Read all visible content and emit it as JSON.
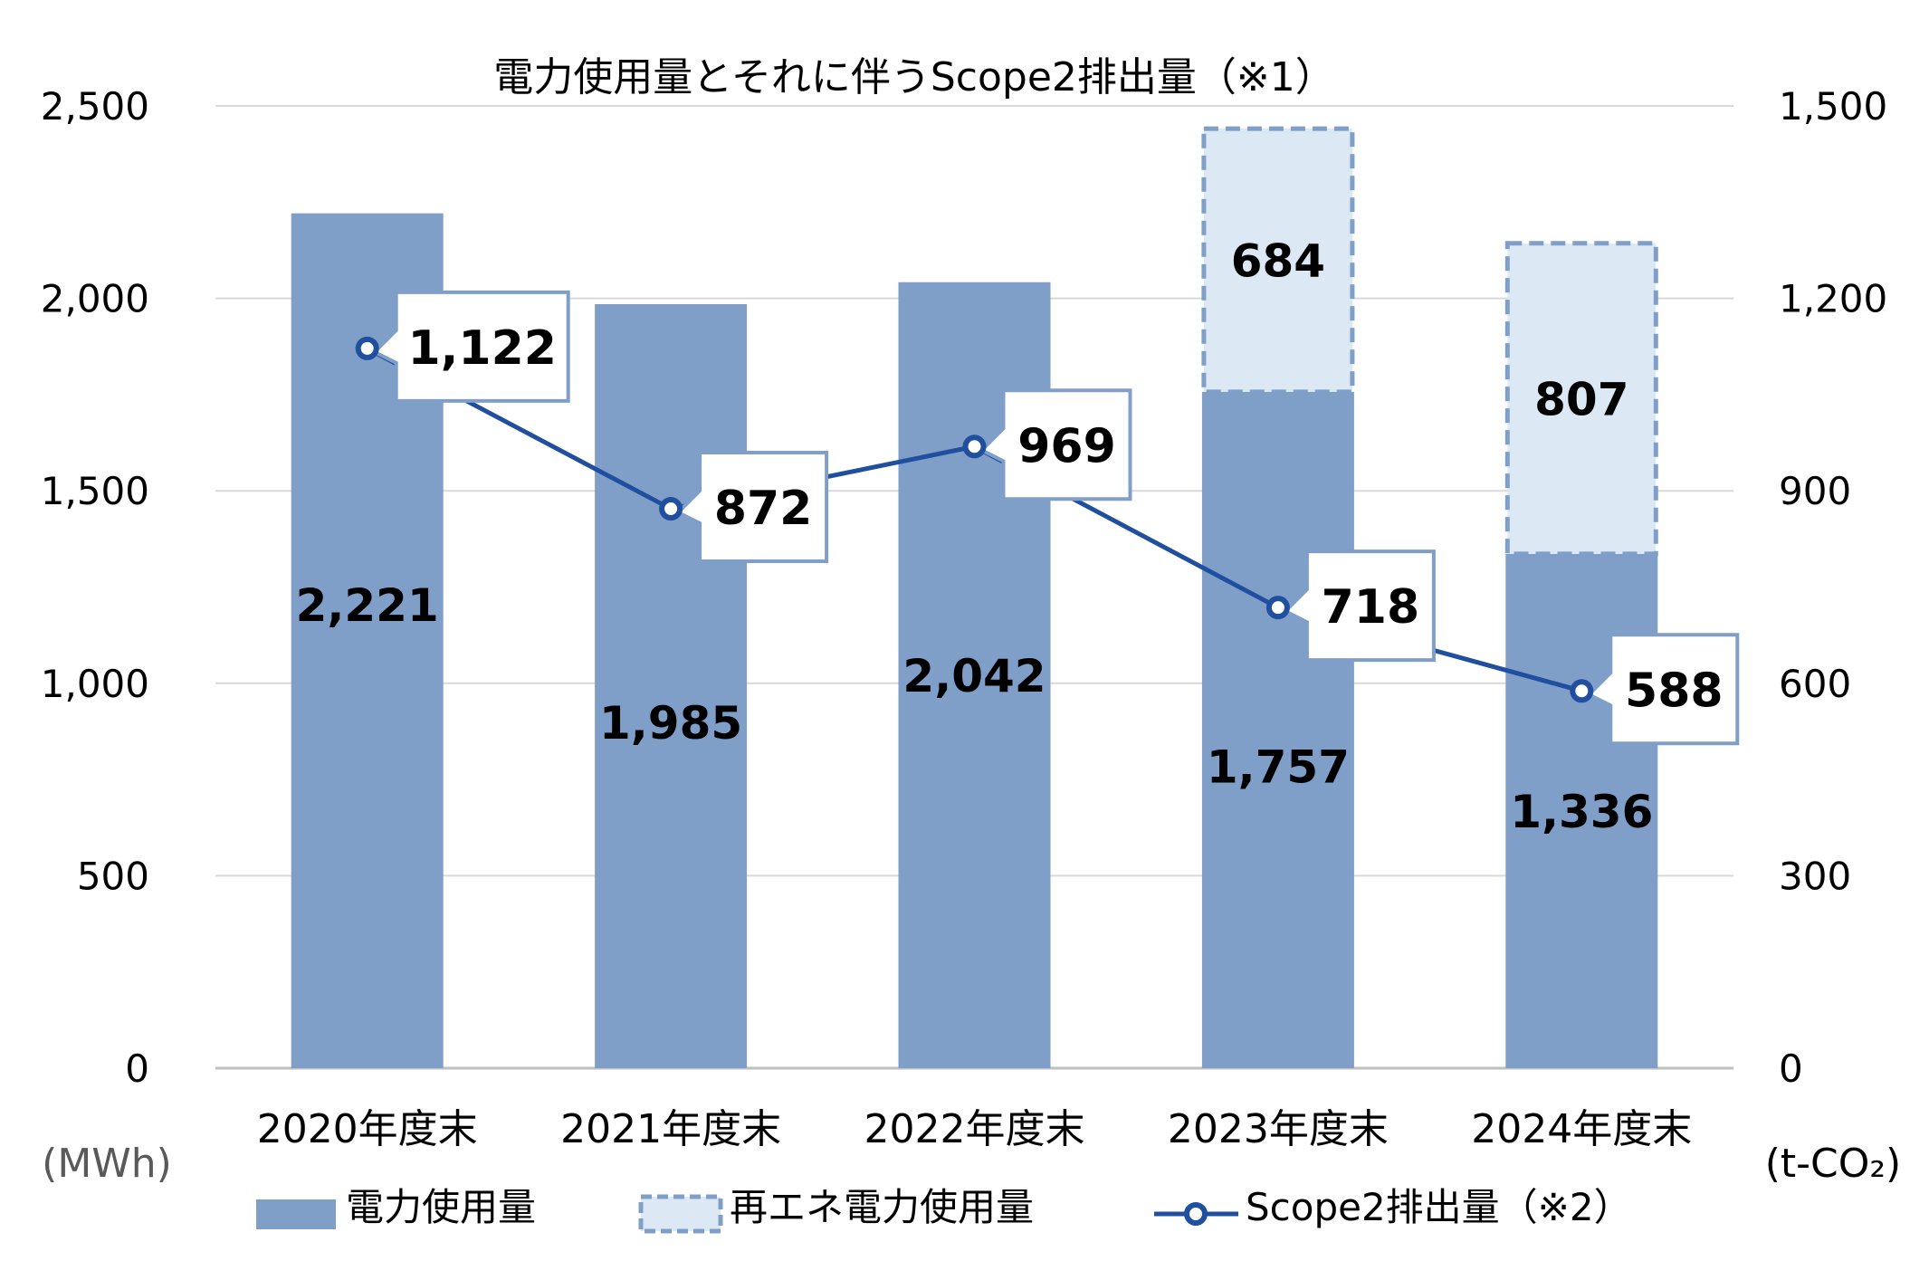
{
  "chart_data": {
    "type": "bar",
    "title": "電力使用量とそれに伴うScope2排出量（※1）",
    "categories": [
      "2020年度末",
      "2021年度末",
      "2022年度末",
      "2023年度末",
      "2024年度末"
    ],
    "y_left": {
      "unit": "(MWh)",
      "ylim": [
        0,
        2500
      ],
      "ticks": [
        "0",
        "500",
        "1,000",
        "1,500",
        "2,000",
        "2,500"
      ]
    },
    "y_right": {
      "unit": "(t-CO₂)",
      "ylim": [
        0,
        1500
      ],
      "ticks": [
        "0",
        "300",
        "600",
        "900",
        "1,200",
        "1,500"
      ]
    },
    "grid": true,
    "legend_position": "bottom",
    "series": [
      {
        "name": "電力使用量",
        "kind": "bar-stacked",
        "axis": "left",
        "color": "#7f9fc9",
        "values": [
          2221,
          1985,
          2042,
          1757,
          1336
        ],
        "labels": [
          "2,221",
          "1,985",
          "2,042",
          "1,757",
          "1,336"
        ]
      },
      {
        "name": "再エネ電力使用量",
        "kind": "bar-stacked-dashed",
        "axis": "left",
        "color": "#dde8f5",
        "border": "#7f9fc9",
        "values": [
          0,
          0,
          0,
          684,
          807
        ],
        "labels": [
          "",
          "",
          "",
          "684",
          "807"
        ]
      },
      {
        "name": "Scope2排出量（※2）",
        "kind": "line",
        "axis": "right",
        "color": "#1f4f9e",
        "values": [
          1122,
          872,
          969,
          718,
          588
        ],
        "labels": [
          "1,122",
          "872",
          "969",
          "718",
          "588"
        ]
      }
    ]
  }
}
